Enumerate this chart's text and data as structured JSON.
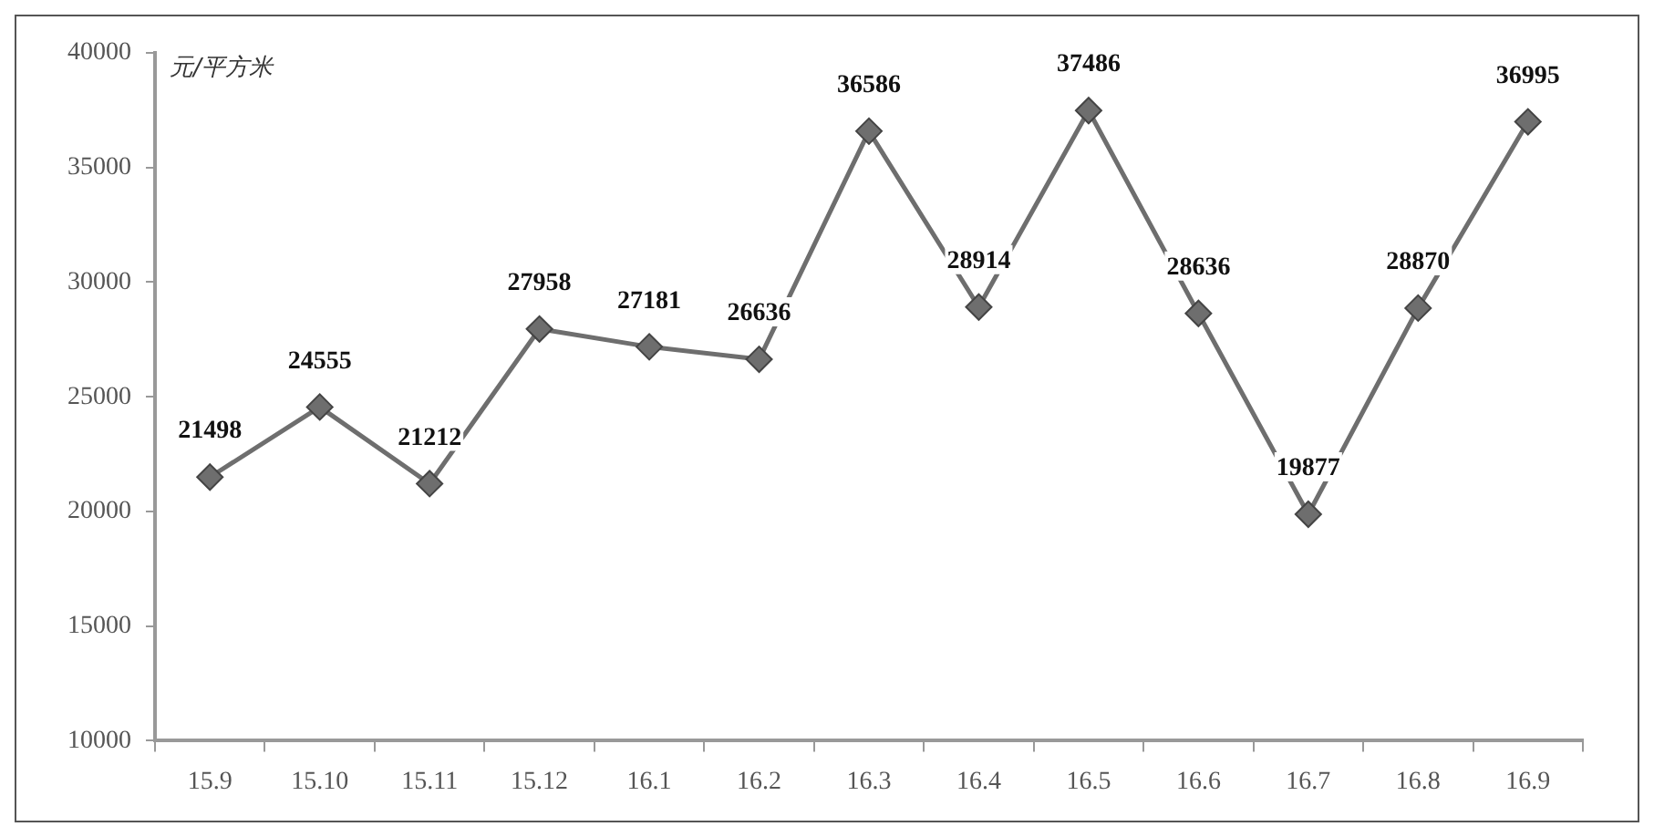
{
  "chart_data": {
    "type": "line",
    "ylabel": "元/平方米",
    "categories": [
      "15.9",
      "15.10",
      "15.11",
      "15.12",
      "16.1",
      "16.2",
      "16.3",
      "16.4",
      "16.5",
      "16.6",
      "16.7",
      "16.8",
      "16.9"
    ],
    "series": [
      {
        "color": "#6e6e6e",
        "values": [
          21498,
          24555,
          21212,
          27958,
          27181,
          26636,
          36586,
          28914,
          37486,
          28636,
          19877,
          28870,
          36995
        ]
      }
    ],
    "ylim": [
      10000,
      40000
    ],
    "yticks": [
      10000,
      15000,
      20000,
      25000,
      30000,
      35000,
      40000
    ],
    "grid": false,
    "legend": false,
    "marker": "diamond",
    "line_style": "solid",
    "data_labels": true
  }
}
